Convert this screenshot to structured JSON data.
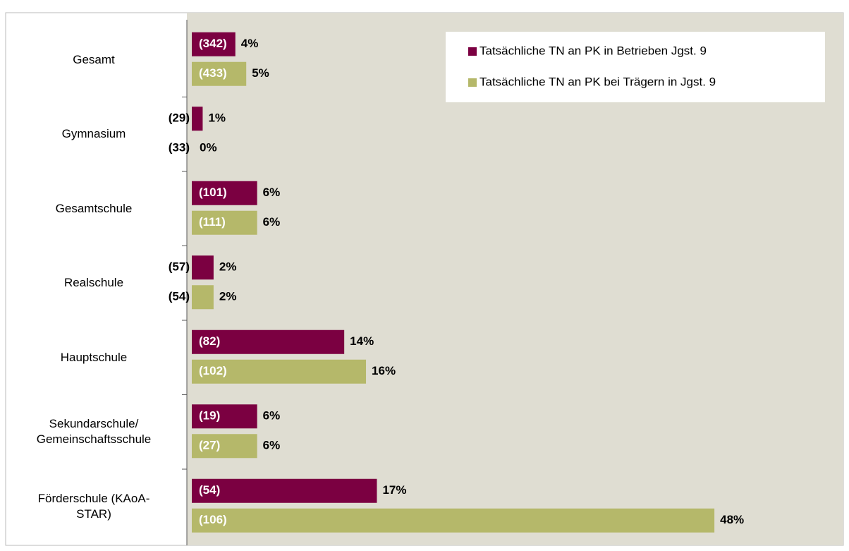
{
  "chart_data": {
    "type": "hbar",
    "categories": [
      "Gesamt",
      "Gymnasium",
      "Gesamtschule",
      "Realschule",
      "Hauptschule",
      "Sekundarschule/\nGemeinschaftsschule",
      "Förderschule (KAoA-\nSTAR)"
    ],
    "series": [
      {
        "name": "Tatsächliche TN an PK in Betrieben Jgst. 9",
        "color": "#7b0041",
        "values": [
          4,
          1,
          6,
          2,
          14,
          6,
          17
        ],
        "value_labels": [
          "4%",
          "1%",
          "6%",
          "2%",
          "14%",
          "6%",
          "17%"
        ],
        "count_labels": [
          "(342)",
          "(29)",
          "(101)",
          "(57)",
          "(82)",
          "(19)",
          "(54)"
        ]
      },
      {
        "name": "Tatsächliche TN an PK bei Trägern in Jgst. 9",
        "color": "#b5b86a",
        "values": [
          5,
          0,
          6,
          2,
          16,
          6,
          48
        ],
        "value_labels": [
          "5%",
          "0%",
          "6%",
          "2%",
          "16%",
          "6%",
          "48%"
        ],
        "count_labels": [
          "(433)",
          "(33)",
          "(111)",
          "(54)",
          "(102)",
          "(27)",
          "(106)"
        ]
      }
    ],
    "xlim": [
      0,
      60
    ],
    "legend": "top-right"
  }
}
